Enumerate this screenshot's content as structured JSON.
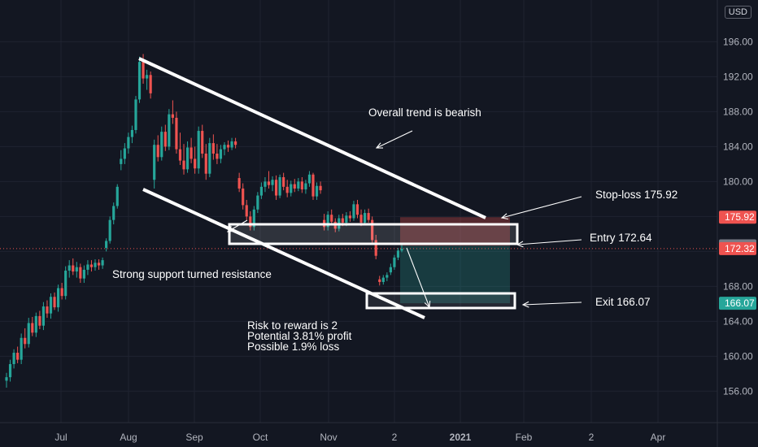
{
  "currency_button": "USD",
  "colors": {
    "background": "#131722",
    "grid": "#1f2330",
    "up": "#26a69a",
    "down": "#ef5350",
    "annotation": "#ffffff",
    "stop_tag": "#ef5350",
    "entry_tag": "#787b86",
    "current_tag": "#ef5350",
    "exit_tag": "#26a69a"
  },
  "chart_data": {
    "type": "candlestick",
    "y_ticks": [
      "196.00",
      "192.00",
      "188.00",
      "184.00",
      "180.00",
      "176.00",
      "172.00",
      "168.00",
      "164.00",
      "160.00",
      "156.00"
    ],
    "y_tick_values": [
      196,
      192,
      188,
      184,
      180,
      176,
      172,
      168,
      164,
      160,
      156
    ],
    "ylim": [
      152.4,
      200.6
    ],
    "x_ticks": [
      "Jul",
      "Aug",
      "Sep",
      "Oct",
      "Nov",
      "2",
      "2021",
      "Feb",
      "2",
      "Apr"
    ],
    "price_tags": [
      {
        "name": "stop",
        "label": "175.92",
        "value": 175.92,
        "color": "#ef5350"
      },
      {
        "name": "entry",
        "label": "172.64",
        "value": 172.64,
        "color": "#787b86"
      },
      {
        "name": "current",
        "label": "172.32",
        "value": 172.32,
        "color": "#ef5350"
      },
      {
        "name": "exit",
        "label": "166.07",
        "value": 166.07,
        "color": "#26a69a"
      }
    ],
    "annotations": [
      {
        "name": "trend-note",
        "text": "Overall trend is bearish"
      },
      {
        "name": "support-note",
        "text": "Strong support turned resistance"
      },
      {
        "name": "stop-loss-note",
        "text": "Stop-loss 175.92"
      },
      {
        "name": "entry-note",
        "text": "Entry 172.64"
      },
      {
        "name": "exit-note",
        "text": "Exit 166.07"
      },
      {
        "name": "risk-reward-note",
        "text": "Risk to reward is 2"
      },
      {
        "name": "profit-note",
        "text": "Potential 3.81% profit"
      },
      {
        "name": "loss-note",
        "text": "Possible 1.9% loss"
      }
    ],
    "candles": [
      [
        157.2,
        158.1,
        156.4,
        157.6
      ],
      [
        157.6,
        159.6,
        157.1,
        159.1
      ],
      [
        159.1,
        160.8,
        158.6,
        160.4
      ],
      [
        160.4,
        161.1,
        159.2,
        159.6
      ],
      [
        159.6,
        162.6,
        159.1,
        162.1
      ],
      [
        162.1,
        163.2,
        160.9,
        161.4
      ],
      [
        161.4,
        164.4,
        161.0,
        163.8
      ],
      [
        163.8,
        164.5,
        162.3,
        162.7
      ],
      [
        162.7,
        165.0,
        162.2,
        164.6
      ],
      [
        164.6,
        165.2,
        163.1,
        163.5
      ],
      [
        163.5,
        166.2,
        163.0,
        165.7
      ],
      [
        165.7,
        166.4,
        164.4,
        164.9
      ],
      [
        164.9,
        167.2,
        164.3,
        166.8
      ],
      [
        166.8,
        167.3,
        165.3,
        165.6
      ],
      [
        165.6,
        168.2,
        165.1,
        167.8
      ],
      [
        167.8,
        168.4,
        166.5,
        166.9
      ],
      [
        166.9,
        170.3,
        166.5,
        169.8
      ],
      [
        169.8,
        171.0,
        169.0,
        170.4
      ],
      [
        170.4,
        171.2,
        169.3,
        169.7
      ],
      [
        169.7,
        170.8,
        169.0,
        170.2
      ],
      [
        170.2,
        170.6,
        168.4,
        168.9
      ],
      [
        168.9,
        170.4,
        168.4,
        169.9
      ],
      [
        169.9,
        171.0,
        169.3,
        170.5
      ],
      [
        170.5,
        171.0,
        169.7,
        170.2
      ],
      [
        170.2,
        171.1,
        169.8,
        170.7
      ],
      [
        170.7,
        171.1,
        169.9,
        170.4
      ],
      [
        170.4,
        171.3,
        170.0,
        171.0
      ],
      [
        172.4,
        173.5,
        172.0,
        173.2
      ],
      [
        173.2,
        176.0,
        172.9,
        175.6
      ],
      [
        175.6,
        177.6,
        175.1,
        177.2
      ],
      [
        177.2,
        179.7,
        176.9,
        179.4
      ],
      [
        182.0,
        183.6,
        181.3,
        182.6
      ],
      [
        182.6,
        184.4,
        182.0,
        183.8
      ],
      [
        183.8,
        185.6,
        183.2,
        185.1
      ],
      [
        185.1,
        186.4,
        184.4,
        185.9
      ],
      [
        185.9,
        189.8,
        185.5,
        189.4
      ],
      [
        189.4,
        194.3,
        189.0,
        193.7
      ],
      [
        193.7,
        194.6,
        191.2,
        191.8
      ],
      [
        191.8,
        192.8,
        190.5,
        192.2
      ],
      [
        192.2,
        192.6,
        189.5,
        190.1
      ],
      [
        180.2,
        184.8,
        179.2,
        184.2
      ],
      [
        184.2,
        185.3,
        182.3,
        182.8
      ],
      [
        182.8,
        186.3,
        182.4,
        185.7
      ],
      [
        185.7,
        186.5,
        183.5,
        184.0
      ],
      [
        184.0,
        188.3,
        183.6,
        187.7
      ],
      [
        187.7,
        189.3,
        186.6,
        187.3
      ],
      [
        187.3,
        188.0,
        183.2,
        183.7
      ],
      [
        183.7,
        185.6,
        181.9,
        182.4
      ],
      [
        182.4,
        184.3,
        180.8,
        181.4
      ],
      [
        181.4,
        184.6,
        181.0,
        183.9
      ],
      [
        183.9,
        185.0,
        182.1,
        182.6
      ],
      [
        182.6,
        184.0,
        180.9,
        181.5
      ],
      [
        181.5,
        186.3,
        180.9,
        185.8
      ],
      [
        185.8,
        186.5,
        182.7,
        183.2
      ],
      [
        183.2,
        184.3,
        180.2,
        180.9
      ],
      [
        180.9,
        185.0,
        180.5,
        184.4
      ],
      [
        184.4,
        185.4,
        182.5,
        183.2
      ],
      [
        183.2,
        184.3,
        182.0,
        182.6
      ],
      [
        182.6,
        184.2,
        182.1,
        183.7
      ],
      [
        183.7,
        184.5,
        183.0,
        184.2
      ],
      [
        184.2,
        184.7,
        183.4,
        183.9
      ],
      [
        183.9,
        185.0,
        183.6,
        184.6
      ],
      [
        184.6,
        185.0,
        183.8,
        184.2
      ],
      [
        180.4,
        181.0,
        178.8,
        179.2
      ],
      [
        179.2,
        179.8,
        176.8,
        177.3
      ],
      [
        177.3,
        177.9,
        175.6,
        176.0
      ],
      [
        176.0,
        176.6,
        174.4,
        174.8
      ],
      [
        174.8,
        177.2,
        174.4,
        176.8
      ],
      [
        176.8,
        178.8,
        176.4,
        178.4
      ],
      [
        178.4,
        179.9,
        178.0,
        179.4
      ],
      [
        179.4,
        180.5,
        178.8,
        180.0
      ],
      [
        180.0,
        181.2,
        179.2,
        179.6
      ],
      [
        179.6,
        180.6,
        178.9,
        180.2
      ],
      [
        180.2,
        180.7,
        177.9,
        178.4
      ],
      [
        178.4,
        180.8,
        178.1,
        180.5
      ],
      [
        180.5,
        181.0,
        179.0,
        179.4
      ],
      [
        179.4,
        180.2,
        178.2,
        178.7
      ],
      [
        178.7,
        180.1,
        178.3,
        179.7
      ],
      [
        179.7,
        180.3,
        178.8,
        179.2
      ],
      [
        179.2,
        180.4,
        178.9,
        180.0
      ],
      [
        180.0,
        180.5,
        178.7,
        179.1
      ],
      [
        179.1,
        180.2,
        178.6,
        179.8
      ],
      [
        179.8,
        181.2,
        179.4,
        180.8
      ],
      [
        180.8,
        181.0,
        177.9,
        178.3
      ],
      [
        178.3,
        179.9,
        177.9,
        179.5
      ],
      [
        179.5,
        180.0,
        178.6,
        179.0
      ],
      [
        175.6,
        176.3,
        174.4,
        174.8
      ],
      [
        174.8,
        176.6,
        174.4,
        176.2
      ],
      [
        176.2,
        176.8,
        175.0,
        175.4
      ],
      [
        175.4,
        175.8,
        174.2,
        174.6
      ],
      [
        174.6,
        176.2,
        174.3,
        175.8
      ],
      [
        175.8,
        176.3,
        174.9,
        175.3
      ],
      [
        175.3,
        176.5,
        174.9,
        176.1
      ],
      [
        176.1,
        176.6,
        175.4,
        175.8
      ],
      [
        175.8,
        177.8,
        175.5,
        177.4
      ],
      [
        177.4,
        177.9,
        175.8,
        176.2
      ],
      [
        176.2,
        176.8,
        174.9,
        175.3
      ],
      [
        175.3,
        176.8,
        175.0,
        176.4
      ],
      [
        176.4,
        176.9,
        175.3,
        175.6
      ],
      [
        175.6,
        176.0,
        172.9,
        173.3
      ],
      [
        173.3,
        173.9,
        171.1,
        171.5
      ],
      [
        168.8,
        169.2,
        168.1,
        168.5
      ],
      [
        168.5,
        169.3,
        168.2,
        169.0
      ],
      [
        169.0,
        169.6,
        168.6,
        169.3
      ],
      [
        169.6,
        170.6,
        169.3,
        170.2
      ],
      [
        170.2,
        171.6,
        169.9,
        171.3
      ],
      [
        171.3,
        172.4,
        171.0,
        172.1
      ],
      [
        172.1,
        172.8,
        171.9,
        172.3
      ]
    ]
  }
}
